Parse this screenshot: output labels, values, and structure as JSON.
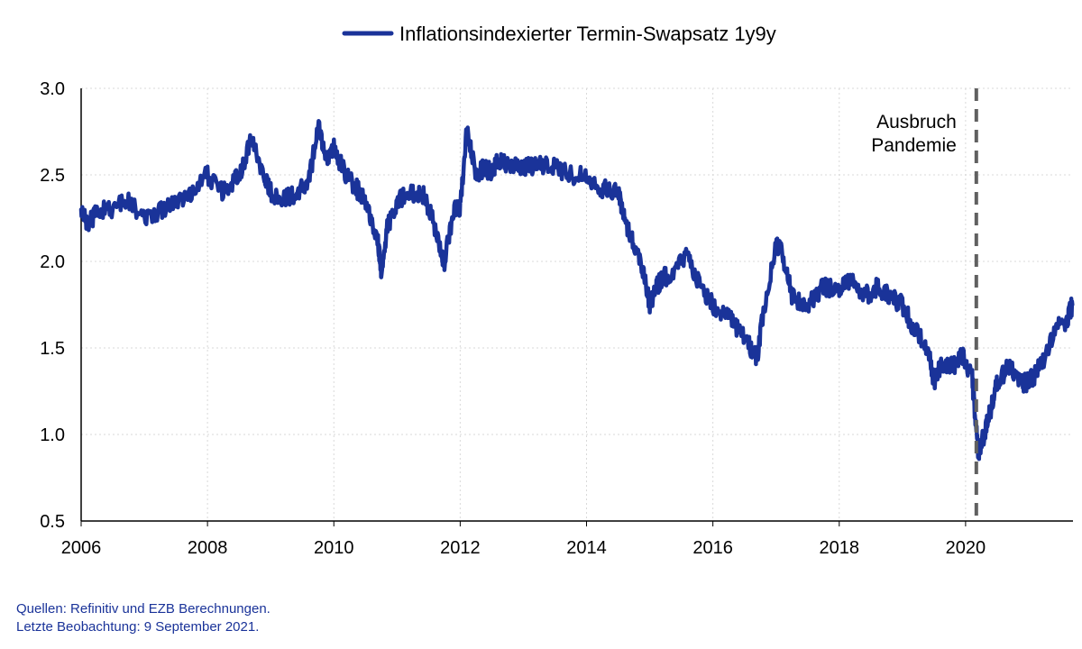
{
  "chart_data": {
    "type": "line",
    "title": "",
    "xlabel": "",
    "ylabel": "",
    "xlim": [
      2006.0,
      2021.7
    ],
    "ylim": [
      0.5,
      3.0
    ],
    "x_ticks": [
      2006,
      2008,
      2010,
      2012,
      2014,
      2016,
      2018,
      2020
    ],
    "x_tick_labels": [
      "2006",
      "2008",
      "2010",
      "2012",
      "2014",
      "2016",
      "2018",
      "2020"
    ],
    "y_ticks": [
      0.5,
      1.0,
      1.5,
      2.0,
      2.5,
      3.0
    ],
    "y_tick_labels": [
      "0.5",
      "1.0",
      "1.5",
      "2.0",
      "2.5",
      "3.0"
    ],
    "grid": "horizontal and vertical dotted",
    "legend": {
      "position": "top-center"
    },
    "series": [
      {
        "name": "Inflationsindexierter Termin-Swapsatz 1y9y",
        "color": "#1a3399",
        "x": [
          2006.0,
          2006.1,
          2006.25,
          2006.5,
          2006.75,
          2007.0,
          2007.25,
          2007.5,
          2007.75,
          2008.0,
          2008.25,
          2008.5,
          2008.7,
          2008.9,
          2009.0,
          2009.2,
          2009.4,
          2009.6,
          2009.75,
          2009.9,
          2010.0,
          2010.2,
          2010.4,
          2010.55,
          2010.7,
          2010.75,
          2010.85,
          2011.0,
          2011.2,
          2011.4,
          2011.55,
          2011.7,
          2011.75,
          2011.9,
          2012.0,
          2012.1,
          2012.25,
          2012.4,
          2012.5,
          2012.6,
          2012.75,
          2013.0,
          2013.25,
          2013.5,
          2013.75,
          2014.0,
          2014.25,
          2014.5,
          2014.6,
          2014.75,
          2014.9,
          2015.0,
          2015.1,
          2015.2,
          2015.4,
          2015.6,
          2015.8,
          2016.0,
          2016.2,
          2016.4,
          2016.6,
          2016.7,
          2016.8,
          2017.0,
          2017.1,
          2017.25,
          2017.5,
          2017.75,
          2018.0,
          2018.2,
          2018.4,
          2018.6,
          2018.8,
          2019.0,
          2019.2,
          2019.4,
          2019.5,
          2019.6,
          2019.8,
          2019.95,
          2020.1,
          2020.15,
          2020.2,
          2020.3,
          2020.4,
          2020.5,
          2020.7,
          2020.9,
          2021.0,
          2021.2,
          2021.4,
          2021.6,
          2021.69
        ],
        "values": [
          2.3,
          2.2,
          2.3,
          2.3,
          2.35,
          2.25,
          2.3,
          2.35,
          2.4,
          2.5,
          2.4,
          2.5,
          2.7,
          2.5,
          2.4,
          2.35,
          2.4,
          2.45,
          2.78,
          2.6,
          2.65,
          2.5,
          2.4,
          2.3,
          2.1,
          1.95,
          2.2,
          2.35,
          2.4,
          2.4,
          2.25,
          2.05,
          2.0,
          2.3,
          2.3,
          2.75,
          2.5,
          2.55,
          2.5,
          2.6,
          2.55,
          2.55,
          2.55,
          2.55,
          2.5,
          2.5,
          2.42,
          2.4,
          2.25,
          2.1,
          1.95,
          1.75,
          1.85,
          1.9,
          1.95,
          2.05,
          1.85,
          1.75,
          1.7,
          1.6,
          1.5,
          1.45,
          1.7,
          2.1,
          2.05,
          1.8,
          1.75,
          1.85,
          1.85,
          1.9,
          1.8,
          1.85,
          1.8,
          1.75,
          1.6,
          1.5,
          1.3,
          1.4,
          1.4,
          1.45,
          1.35,
          1.1,
          0.9,
          1.0,
          1.15,
          1.3,
          1.4,
          1.3,
          1.3,
          1.4,
          1.6,
          1.65,
          1.75
        ]
      }
    ],
    "annotations": [
      {
        "x": 2020.17,
        "line_style": "dashed",
        "line_color": "#606060",
        "text_lines": [
          "Ausbruch",
          "Pandemie"
        ]
      }
    ]
  },
  "footer": {
    "source_line": "Quellen: Refinitiv und EZB Berechnungen.",
    "observation_line": "Letzte Beobachtung: 9 September 2021."
  }
}
